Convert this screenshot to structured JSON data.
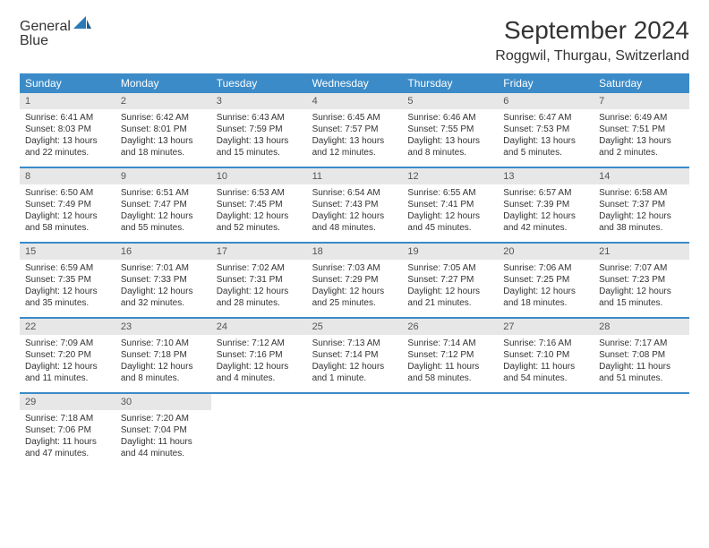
{
  "logo": {
    "line1a": "General",
    "line1b_icon": "sail",
    "line2": "Blue"
  },
  "title": "September 2024",
  "location": "Roggwil, Thurgau, Switzerland",
  "colors": {
    "header_bg": "#3b8bc8",
    "header_text": "#ffffff",
    "daynum_bg": "#e7e7e7",
    "daynum_text": "#555555",
    "body_text": "#333333",
    "week_divider": "#3b8bc8",
    "logo_gray": "#5a5a5a",
    "logo_blue": "#2a7ab8",
    "page_bg": "#ffffff"
  },
  "typography": {
    "title_fontsize": 28,
    "location_fontsize": 16,
    "weekday_fontsize": 12,
    "daynum_fontsize": 11,
    "body_fontsize": 10,
    "logo_fontsize": 22
  },
  "layout": {
    "columns": 7,
    "rows": 5,
    "cell_min_height": 82
  },
  "weekdays": [
    "Sunday",
    "Monday",
    "Tuesday",
    "Wednesday",
    "Thursday",
    "Friday",
    "Saturday"
  ],
  "days": [
    {
      "n": "1",
      "sunrise": "Sunrise: 6:41 AM",
      "sunset": "Sunset: 8:03 PM",
      "daylight": "Daylight: 13 hours and 22 minutes."
    },
    {
      "n": "2",
      "sunrise": "Sunrise: 6:42 AM",
      "sunset": "Sunset: 8:01 PM",
      "daylight": "Daylight: 13 hours and 18 minutes."
    },
    {
      "n": "3",
      "sunrise": "Sunrise: 6:43 AM",
      "sunset": "Sunset: 7:59 PM",
      "daylight": "Daylight: 13 hours and 15 minutes."
    },
    {
      "n": "4",
      "sunrise": "Sunrise: 6:45 AM",
      "sunset": "Sunset: 7:57 PM",
      "daylight": "Daylight: 13 hours and 12 minutes."
    },
    {
      "n": "5",
      "sunrise": "Sunrise: 6:46 AM",
      "sunset": "Sunset: 7:55 PM",
      "daylight": "Daylight: 13 hours and 8 minutes."
    },
    {
      "n": "6",
      "sunrise": "Sunrise: 6:47 AM",
      "sunset": "Sunset: 7:53 PM",
      "daylight": "Daylight: 13 hours and 5 minutes."
    },
    {
      "n": "7",
      "sunrise": "Sunrise: 6:49 AM",
      "sunset": "Sunset: 7:51 PM",
      "daylight": "Daylight: 13 hours and 2 minutes."
    },
    {
      "n": "8",
      "sunrise": "Sunrise: 6:50 AM",
      "sunset": "Sunset: 7:49 PM",
      "daylight": "Daylight: 12 hours and 58 minutes."
    },
    {
      "n": "9",
      "sunrise": "Sunrise: 6:51 AM",
      "sunset": "Sunset: 7:47 PM",
      "daylight": "Daylight: 12 hours and 55 minutes."
    },
    {
      "n": "10",
      "sunrise": "Sunrise: 6:53 AM",
      "sunset": "Sunset: 7:45 PM",
      "daylight": "Daylight: 12 hours and 52 minutes."
    },
    {
      "n": "11",
      "sunrise": "Sunrise: 6:54 AM",
      "sunset": "Sunset: 7:43 PM",
      "daylight": "Daylight: 12 hours and 48 minutes."
    },
    {
      "n": "12",
      "sunrise": "Sunrise: 6:55 AM",
      "sunset": "Sunset: 7:41 PM",
      "daylight": "Daylight: 12 hours and 45 minutes."
    },
    {
      "n": "13",
      "sunrise": "Sunrise: 6:57 AM",
      "sunset": "Sunset: 7:39 PM",
      "daylight": "Daylight: 12 hours and 42 minutes."
    },
    {
      "n": "14",
      "sunrise": "Sunrise: 6:58 AM",
      "sunset": "Sunset: 7:37 PM",
      "daylight": "Daylight: 12 hours and 38 minutes."
    },
    {
      "n": "15",
      "sunrise": "Sunrise: 6:59 AM",
      "sunset": "Sunset: 7:35 PM",
      "daylight": "Daylight: 12 hours and 35 minutes."
    },
    {
      "n": "16",
      "sunrise": "Sunrise: 7:01 AM",
      "sunset": "Sunset: 7:33 PM",
      "daylight": "Daylight: 12 hours and 32 minutes."
    },
    {
      "n": "17",
      "sunrise": "Sunrise: 7:02 AM",
      "sunset": "Sunset: 7:31 PM",
      "daylight": "Daylight: 12 hours and 28 minutes."
    },
    {
      "n": "18",
      "sunrise": "Sunrise: 7:03 AM",
      "sunset": "Sunset: 7:29 PM",
      "daylight": "Daylight: 12 hours and 25 minutes."
    },
    {
      "n": "19",
      "sunrise": "Sunrise: 7:05 AM",
      "sunset": "Sunset: 7:27 PM",
      "daylight": "Daylight: 12 hours and 21 minutes."
    },
    {
      "n": "20",
      "sunrise": "Sunrise: 7:06 AM",
      "sunset": "Sunset: 7:25 PM",
      "daylight": "Daylight: 12 hours and 18 minutes."
    },
    {
      "n": "21",
      "sunrise": "Sunrise: 7:07 AM",
      "sunset": "Sunset: 7:23 PM",
      "daylight": "Daylight: 12 hours and 15 minutes."
    },
    {
      "n": "22",
      "sunrise": "Sunrise: 7:09 AM",
      "sunset": "Sunset: 7:20 PM",
      "daylight": "Daylight: 12 hours and 11 minutes."
    },
    {
      "n": "23",
      "sunrise": "Sunrise: 7:10 AM",
      "sunset": "Sunset: 7:18 PM",
      "daylight": "Daylight: 12 hours and 8 minutes."
    },
    {
      "n": "24",
      "sunrise": "Sunrise: 7:12 AM",
      "sunset": "Sunset: 7:16 PM",
      "daylight": "Daylight: 12 hours and 4 minutes."
    },
    {
      "n": "25",
      "sunrise": "Sunrise: 7:13 AM",
      "sunset": "Sunset: 7:14 PM",
      "daylight": "Daylight: 12 hours and 1 minute."
    },
    {
      "n": "26",
      "sunrise": "Sunrise: 7:14 AM",
      "sunset": "Sunset: 7:12 PM",
      "daylight": "Daylight: 11 hours and 58 minutes."
    },
    {
      "n": "27",
      "sunrise": "Sunrise: 7:16 AM",
      "sunset": "Sunset: 7:10 PM",
      "daylight": "Daylight: 11 hours and 54 minutes."
    },
    {
      "n": "28",
      "sunrise": "Sunrise: 7:17 AM",
      "sunset": "Sunset: 7:08 PM",
      "daylight": "Daylight: 11 hours and 51 minutes."
    },
    {
      "n": "29",
      "sunrise": "Sunrise: 7:18 AM",
      "sunset": "Sunset: 7:06 PM",
      "daylight": "Daylight: 11 hours and 47 minutes."
    },
    {
      "n": "30",
      "sunrise": "Sunrise: 7:20 AM",
      "sunset": "Sunset: 7:04 PM",
      "daylight": "Daylight: 11 hours and 44 minutes."
    }
  ]
}
